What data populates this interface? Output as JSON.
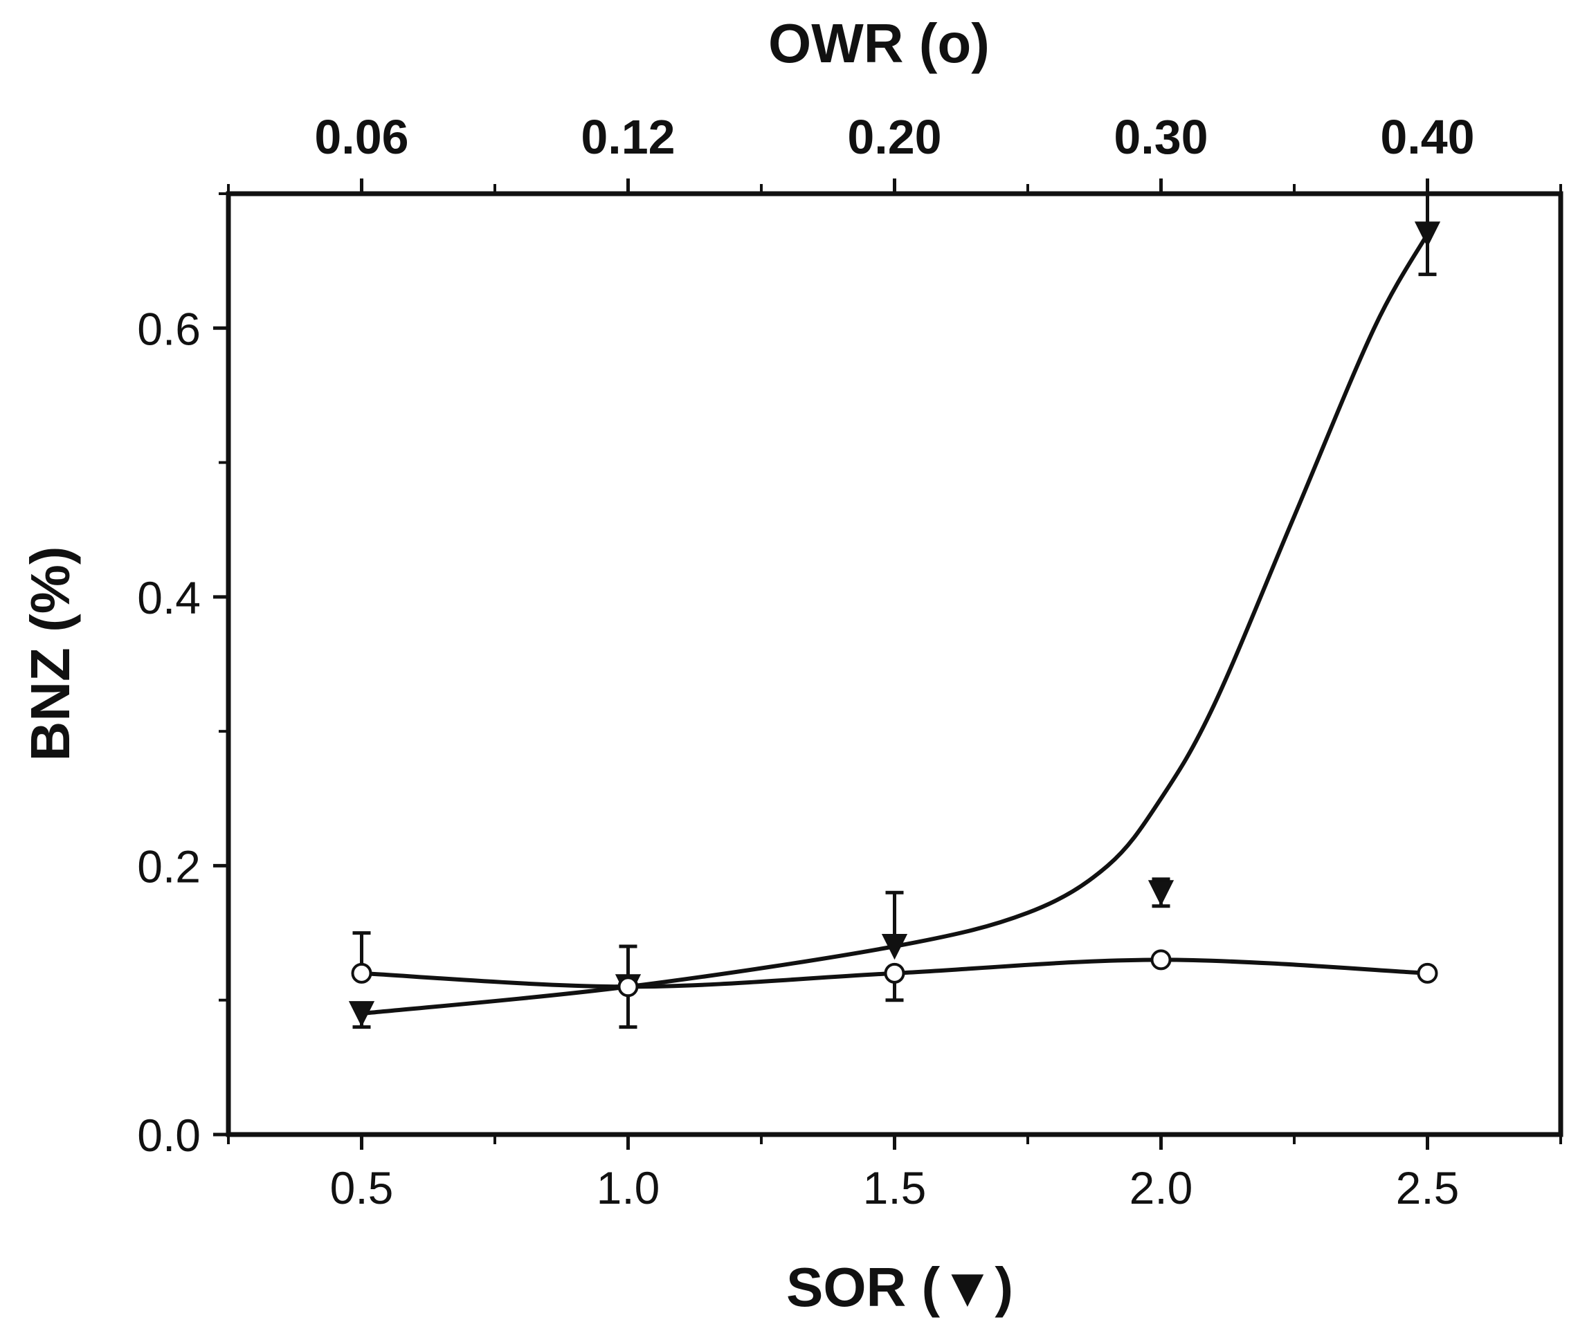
{
  "chart_data": {
    "type": "line",
    "title": "",
    "xlabel": "SOR (▼)",
    "ylabel": "BNZ (%)",
    "x2label": "OWR (o)",
    "xlim": [
      0.25,
      2.75
    ],
    "ylim": [
      0.0,
      0.7
    ],
    "x_ticks": [
      "0.5",
      "1.0",
      "1.5",
      "2.0",
      "2.5"
    ],
    "x_tick_values": [
      0.5,
      1.0,
      1.5,
      2.0,
      2.5
    ],
    "y_ticks": [
      "0.0",
      "0.2",
      "0.4",
      "0.6"
    ],
    "y_tick_values": [
      0.0,
      0.2,
      0.4,
      0.6
    ],
    "x2_ticks": [
      "0.06",
      "0.12",
      "0.20",
      "0.30",
      "0.40"
    ],
    "x2_tick_positions": [
      0.5,
      1.0,
      1.5,
      2.0,
      2.5
    ],
    "grid": false,
    "series": [
      {
        "name": "SOR",
        "marker": "triangle-down-filled",
        "x": [
          0.5,
          1.0,
          1.5,
          2.0,
          2.5
        ],
        "values": [
          0.09,
          0.11,
          0.14,
          0.18,
          0.67
        ],
        "err_low": [
          0.01,
          0.03,
          0.0,
          0.01,
          0.03
        ],
        "err_high": [
          0.0,
          0.03,
          0.04,
          0.01,
          0.03
        ],
        "curve_x": [
          0.5,
          1.0,
          1.5,
          1.75,
          1.9,
          2.0,
          2.1,
          2.25,
          2.4,
          2.5
        ],
        "curve_y": [
          0.09,
          0.11,
          0.14,
          0.165,
          0.2,
          0.25,
          0.32,
          0.46,
          0.6,
          0.67
        ]
      },
      {
        "name": "OWR",
        "marker": "circle-open",
        "x": [
          0.5,
          1.0,
          1.5,
          2.0,
          2.5
        ],
        "values": [
          0.12,
          0.11,
          0.12,
          0.13,
          0.12
        ],
        "err_low": [
          0.0,
          0.0,
          0.02,
          0.0,
          0.0
        ],
        "err_high": [
          0.03,
          0.03,
          0.0,
          0.0,
          0.0
        ],
        "curve_x": [
          0.5,
          1.0,
          1.5,
          2.0,
          2.5
        ],
        "curve_y": [
          0.12,
          0.11,
          0.12,
          0.13,
          0.12
        ]
      }
    ]
  }
}
